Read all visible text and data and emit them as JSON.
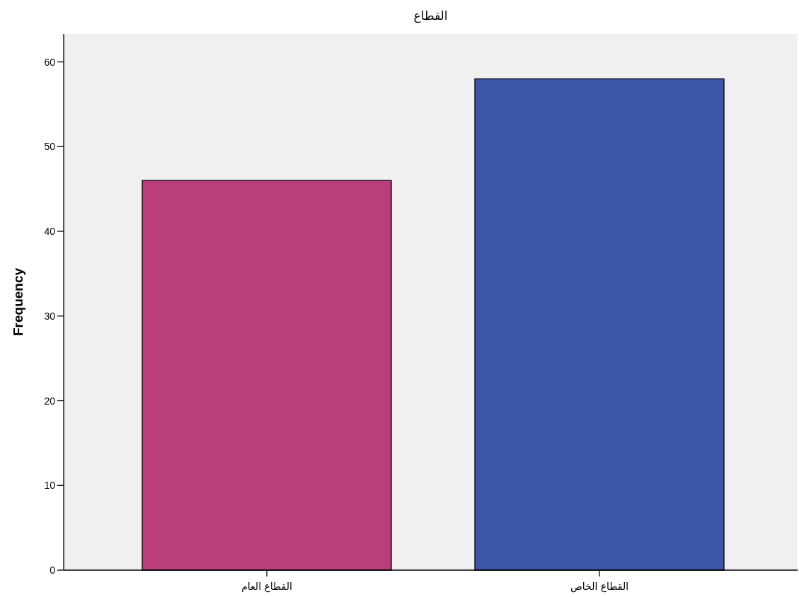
{
  "chart_data": {
    "type": "bar",
    "title": "القطاع",
    "ylabel": "Frequency",
    "categories": [
      "القطاع العام",
      "القطاع الخاص"
    ],
    "values": [
      46,
      58
    ],
    "colors": [
      "#b93e7a",
      "#3d57a8"
    ],
    "ylim": [
      0,
      63.3
    ],
    "yticks": [
      0,
      10,
      20,
      30,
      40,
      50,
      60
    ]
  }
}
